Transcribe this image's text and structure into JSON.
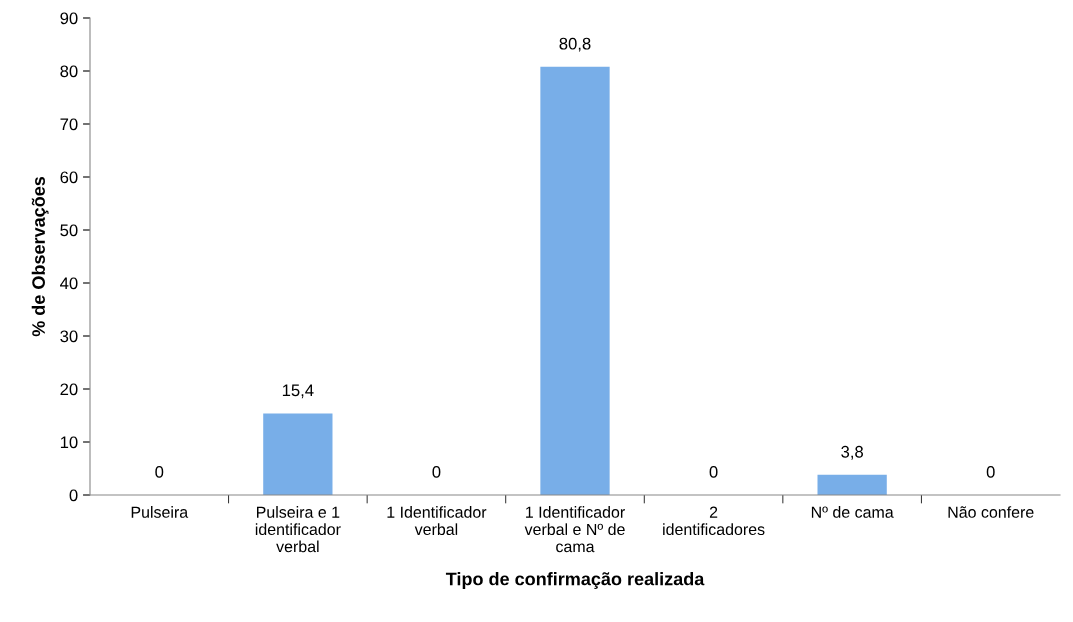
{
  "chart_data": {
    "type": "bar",
    "categories": [
      "Pulseira",
      "Pulseira e 1\nidentificador\nverbal",
      "1 Identificador\nverbal",
      "1 Identificador\nverbal e Nº de\ncama",
      "2\nidentificadores",
      "Nº de cama",
      "Não confere"
    ],
    "values": [
      0,
      15.4,
      0,
      80.8,
      0,
      3.8,
      0
    ],
    "value_labels": [
      "0",
      "15,4",
      "0",
      "80,8",
      "0",
      "3,8",
      "0"
    ],
    "color": "#78aee8",
    "xlabel": "Tipo de confirmação realizada",
    "ylabel": "% de Observações",
    "ylim": [
      0,
      90
    ],
    "yticks": [
      0,
      10,
      20,
      30,
      40,
      50,
      60,
      70,
      80,
      90
    ],
    "grid": false,
    "legend": false
  }
}
